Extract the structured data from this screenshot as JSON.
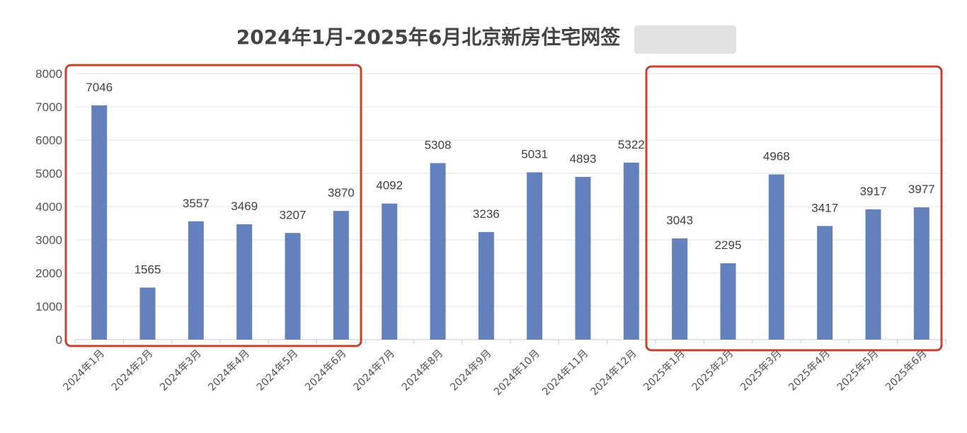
{
  "chart_data": {
    "type": "bar",
    "title": "2024年1月-2025年6月北京新房住宅网签",
    "categories": [
      "2024年1月",
      "2024年2月",
      "2024年3月",
      "2024年4月",
      "2024年5月",
      "2024年6月",
      "2024年7月",
      "2024年8月",
      "2024年9月",
      "2024年10月",
      "2024年11月",
      "2024年12月",
      "2025年1月",
      "2025年2月",
      "2025年3月",
      "2025年4月",
      "2025年5月",
      "2025年6月"
    ],
    "values": [
      7046,
      1565,
      3557,
      3469,
      3207,
      3870,
      4092,
      5308,
      3236,
      5031,
      4893,
      5322,
      3043,
      2295,
      4968,
      3417,
      3917,
      3977
    ],
    "ylim": [
      0,
      8000
    ],
    "yticks": [
      0,
      1000,
      2000,
      3000,
      4000,
      5000,
      6000,
      7000,
      8000
    ],
    "xlabel": "",
    "ylabel": "",
    "grid": true,
    "legend": "none",
    "bar_color": "#6581bd",
    "highlight_color": "#c9412f",
    "highlight_groups": [
      {
        "from": "2024年1月",
        "to": "2024年6月"
      },
      {
        "from": "2025年1月",
        "to": "2025年6月"
      }
    ],
    "watermark": "blurred"
  }
}
